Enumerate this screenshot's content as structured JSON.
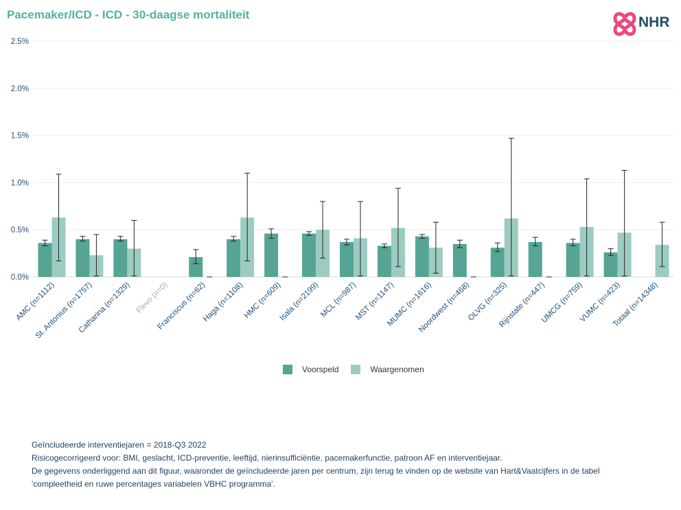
{
  "title": "Pacemaker/ICD - ICD - 30-daagse mortaliteit",
  "logo": {
    "text": "NHR",
    "icon": "nhr-heart-logo-icon"
  },
  "colors": {
    "voorspeld": "#55a494",
    "waargenomen": "#9ccbc2",
    "axis_text": "#1f4e79",
    "muted": "#aaaaaa",
    "title": "#4fb3a3"
  },
  "legend": {
    "voorspeld": "Voorspeld",
    "waargenomen": "Waargenomen"
  },
  "footnotes": [
    "Geïncludeerde interventiejaren = 2018-Q3 2022",
    "Risicogecorrigeerd voor: BMI, geslacht, ICD-preventie, leeftijd, nierinsufficiëntie, pacemakerfunctie, patroon AF en interventiejaar.",
    "De gegevens onderliggend aan dit figuur, waaronder de geïncludeerde jaren per centrum, zijn terug te vinden op de website van Hart&Vaatcijfers in de tabel",
    "'compleetheid en ruwe percentages variabelen VBHC programma'."
  ],
  "chart_data": {
    "type": "bar",
    "y_unit": "%",
    "ylim": [
      0,
      2.5
    ],
    "yticks": [
      "0.0%",
      "0.5%",
      "1.0%",
      "1.5%",
      "2.0%",
      "2.5%"
    ],
    "grid": true,
    "legend_position": "bottom",
    "categories": [
      "AMC (n=1112)",
      "St. Antonius (n=1757)",
      "Catharina (n=1329)",
      "Flevo (n=0)",
      "Franciscus (n=62)",
      "Haga (n=1108)",
      "HMC (n=609)",
      "Isala (n=2199)",
      "MCL (n=987)",
      "MST (n=1147)",
      "MUMC (n=1616)",
      "Noordwest (n=468)",
      "OLVG (n=325)",
      "Rijnstate (n=447)",
      "UMCG (n=759)",
      "VUMC (n=423)",
      "Totaal (n=14348)"
    ],
    "muted_categories": [
      "Flevo (n=0)"
    ],
    "series": [
      {
        "name": "Voorspeld",
        "values": [
          0.36,
          0.4,
          0.4,
          null,
          0.21,
          0.4,
          0.46,
          0.46,
          0.37,
          0.33,
          0.43,
          0.35,
          0.31,
          0.37,
          0.36,
          0.26,
          null
        ],
        "ci_low": [
          0.33,
          0.38,
          0.38,
          null,
          0.14,
          0.38,
          0.41,
          0.44,
          0.34,
          0.31,
          0.41,
          0.31,
          0.27,
          0.33,
          0.33,
          0.23,
          null
        ],
        "ci_high": [
          0.39,
          0.43,
          0.43,
          null,
          0.29,
          0.43,
          0.51,
          0.48,
          0.4,
          0.35,
          0.45,
          0.39,
          0.36,
          0.42,
          0.4,
          0.3,
          null
        ]
      },
      {
        "name": "Waargenomen",
        "values": [
          0.63,
          0.23,
          0.3,
          null,
          0,
          0.63,
          0,
          0.5,
          0.41,
          0.52,
          0.31,
          0,
          0.62,
          0,
          0.53,
          0.47,
          0.34
        ],
        "ci_low": [
          0.17,
          0.01,
          0.01,
          null,
          0,
          0.17,
          0,
          0.2,
          0.01,
          0.11,
          0.04,
          0,
          0.01,
          0,
          0.01,
          0.01,
          0.11
        ],
        "ci_high": [
          1.09,
          0.45,
          0.6,
          null,
          0,
          1.1,
          0,
          0.8,
          0.8,
          0.94,
          0.58,
          0,
          1.47,
          0,
          1.04,
          1.13,
          0.58
        ]
      }
    ]
  }
}
